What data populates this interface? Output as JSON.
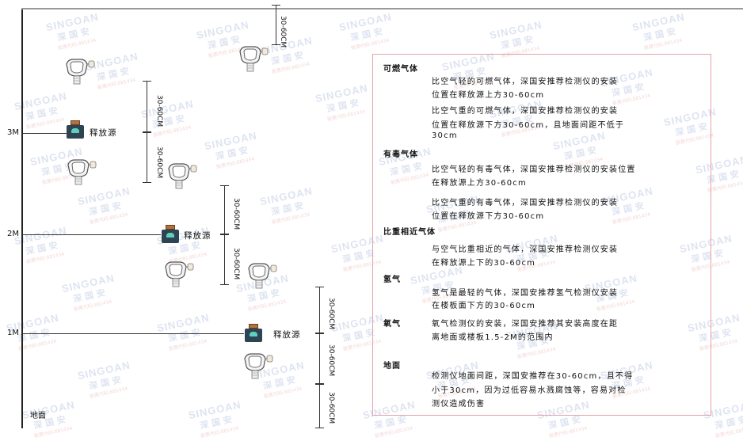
{
  "watermark": {
    "brand": "SINGOAN",
    "cn": "深国安",
    "sub": "股票代码:881434"
  },
  "levels": [
    "3M",
    "2M",
    "1M"
  ],
  "ground_label": "地面",
  "source_label": "释放源",
  "dimension_label": "30-60CM",
  "info": {
    "sections": [
      {
        "title": "可燃气体",
        "paragraphs": [
          [
            "比空气轻的可燃气体，深国安推荐检测仪的安装",
            "位置在释放源上方30-60cm"
          ],
          [
            "比空气重的可燃气体，深国安推荐检测仪的安装",
            "位置在释放源下方30-60cm，且地面间距不低于",
            "30cm"
          ]
        ]
      },
      {
        "title": "有毒气体",
        "paragraphs": [
          [
            "比空气轻的有毒气体，深国安推荐检测仪的安装位置",
            "在释放源上方30-60cm"
          ],
          [
            "比空气重的有毒气体，深国安推荐检测仪的安装",
            "位置在释放源下方30-60cm"
          ]
        ]
      },
      {
        "title": "比重相近气体",
        "paragraphs": [
          [
            "与空气比重相近的气体，深国安推荐检测仪安装",
            "在释放源上下的30-60cm"
          ]
        ]
      },
      {
        "title": "氢气",
        "paragraphs": [
          [
            "氢气是最轻的气体，深国安推荐氢气检测仪安装",
            "在楼板面下方的30-60cm"
          ]
        ]
      },
      {
        "title": "氧气",
        "paragraphs": [
          [
            "氧气检测仪的安装，深国安推荐其安装高度在距",
            "离地面或楼板1.5-2M的范围内"
          ]
        ]
      },
      {
        "title": "地面",
        "paragraphs": [
          [
            "检测仪地面间距，深国安推荐在30-60cm，且不得",
            "小于30cm，因为过低容易水溅腐蚀等，容易对检",
            "测仪造成伤害"
          ]
        ]
      }
    ]
  },
  "colors": {
    "box_border": "#e7a0a8",
    "source_body": "#2f4453",
    "source_face": "#5fd0c0"
  }
}
